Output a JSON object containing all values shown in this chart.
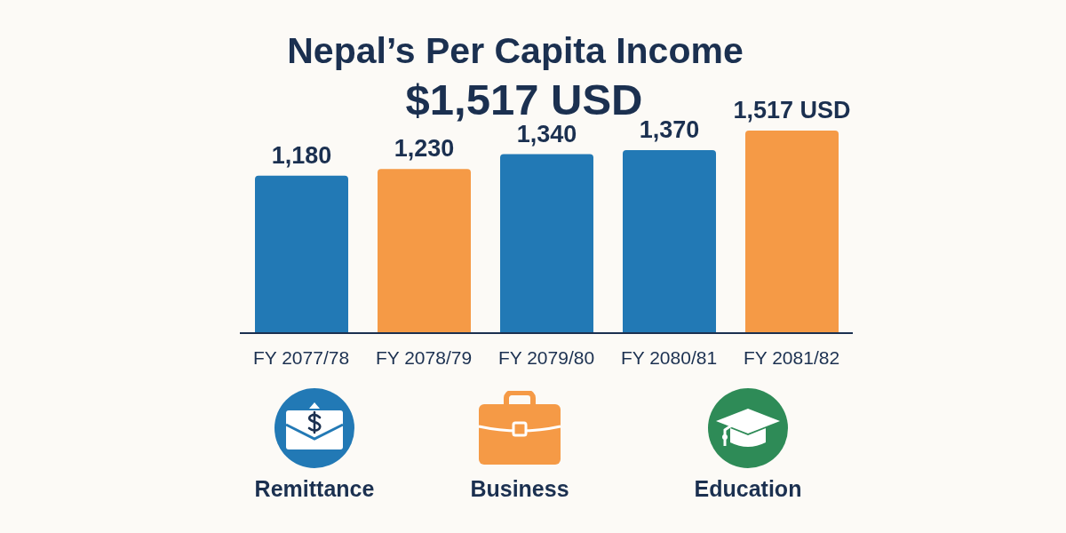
{
  "chart_data": {
    "type": "bar",
    "title": "Nepal’s Per Capita Income",
    "subtitle": "$1,517 USD",
    "categories": [
      "FY 2077/78",
      "FY 2078/79",
      "FY 2079/80",
      "FY 2080/81",
      "FY 2081/82"
    ],
    "values": [
      1180,
      1230,
      1340,
      1370,
      1517
    ],
    "colors": [
      "#2279b5",
      "#f59a46",
      "#2279b5",
      "#2279b5",
      "#f59a46"
    ],
    "value_labels": [
      "1,180",
      "1,230",
      "1,340",
      "1,370",
      "1,517 USD"
    ],
    "annotations": [
      "Remittance",
      "Business",
      "Education"
    ]
  }
}
